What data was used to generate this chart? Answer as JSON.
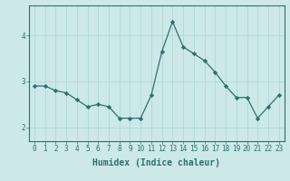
{
  "x": [
    0,
    1,
    2,
    3,
    4,
    5,
    6,
    7,
    8,
    9,
    10,
    11,
    12,
    13,
    14,
    15,
    16,
    17,
    18,
    19,
    20,
    21,
    22,
    23
  ],
  "y": [
    2.9,
    2.9,
    2.8,
    2.75,
    2.6,
    2.45,
    2.5,
    2.45,
    2.2,
    2.2,
    2.2,
    2.7,
    3.65,
    4.3,
    3.75,
    3.6,
    3.45,
    3.2,
    2.9,
    2.65,
    2.65,
    2.2,
    2.45,
    2.7
  ],
  "line_color": "#2d7070",
  "marker": "D",
  "marker_size": 2.2,
  "bg_color": "#cce8e8",
  "grid_color": "#b0d8d8",
  "xlabel": "Humidex (Indice chaleur)",
  "xlabel_fontsize": 7,
  "yticks": [
    2,
    3,
    4
  ],
  "xticks": [
    0,
    1,
    2,
    3,
    4,
    5,
    6,
    7,
    8,
    9,
    10,
    11,
    12,
    13,
    14,
    15,
    16,
    17,
    18,
    19,
    20,
    21,
    22,
    23
  ],
  "ylim": [
    1.7,
    4.65
  ],
  "xlim": [
    -0.5,
    23.5
  ],
  "tick_fontsize": 5.5,
  "axis_color": "#2d7070"
}
